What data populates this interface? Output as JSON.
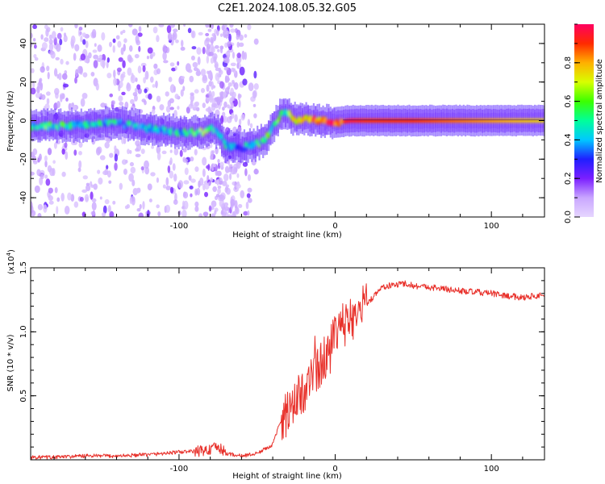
{
  "figure_title": "C2E1.2024.108.05.32.G05",
  "chart_data": [
    {
      "type": "heatmap",
      "title": "",
      "xlabel": "Height of straight line (km)",
      "ylabel": "Frequency (Hz)",
      "xlim": [
        -195,
        134
      ],
      "ylim": [
        -50,
        50
      ],
      "x_ticks": [
        -100,
        0,
        100
      ],
      "x_tick_labels": [
        "-100",
        "0",
        "100"
      ],
      "y_ticks": [
        -40,
        -20,
        0,
        20,
        40
      ],
      "y_tick_labels": [
        "-40",
        "-20",
        "0",
        "20",
        "40"
      ],
      "colorbar": {
        "label": "Normalized spectral amplitude",
        "range": [
          0,
          1
        ],
        "ticks": [
          0.0,
          0.2,
          0.4,
          0.6,
          0.8
        ],
        "tick_labels": [
          "0.0",
          "0.2",
          "0.4",
          "0.6",
          "0.8"
        ],
        "colormap": [
          "#e6d6ff",
          "#c9a6ff",
          "#7b1fff",
          "#1f1fff",
          "#00c8ff",
          "#00ff9a",
          "#3cff00",
          "#d8ff00",
          "#ffb000",
          "#ff2a00",
          "#ff0060"
        ]
      },
      "ridge": {
        "name": "",
        "x": [
          -195,
          -180,
          -160,
          -140,
          -120,
          -100,
          -85,
          -80,
          -75,
          -70,
          -60,
          -50,
          -45,
          -40,
          -35,
          -30,
          -25,
          -20,
          -10,
          0,
          10,
          20,
          50,
          80,
          110,
          134
        ],
        "y": [
          -3,
          -3,
          -2,
          -1,
          -4,
          -6,
          -6,
          -4,
          -6,
          -13,
          -14,
          -12,
          -10,
          -3,
          3,
          4,
          0,
          1,
          0,
          -1,
          0,
          0,
          0,
          0,
          0,
          0
        ],
        "amplitude": [
          0.45,
          0.5,
          0.45,
          0.4,
          0.35,
          0.45,
          0.55,
          0.6,
          0.4,
          0.45,
          0.4,
          0.45,
          0.5,
          0.45,
          0.5,
          0.55,
          0.7,
          0.75,
          0.85,
          0.9,
          0.95,
          0.9,
          0.9,
          0.85,
          0.8,
          0.75
        ]
      }
    },
    {
      "type": "line",
      "title": "",
      "xlabel": "Height of straight line (km)",
      "ylabel": "SNR (10 * v/v)",
      "y_multiplier": "(x10",
      "y_multiplier_exp": "4",
      "y_multiplier_close": ")",
      "xlim": [
        -195,
        134
      ],
      "ylim": [
        0,
        1.5
      ],
      "x_ticks": [
        -100,
        0,
        100
      ],
      "x_tick_labels": [
        "-100",
        "0",
        "100"
      ],
      "y_ticks": [
        0.5,
        1.0,
        1.5
      ],
      "y_tick_labels": [
        "0.5",
        "1.0",
        "1.5"
      ],
      "color": "#e8302a",
      "series": [
        {
          "x": [
            -195,
            -180,
            -160,
            -140,
            -120,
            -100,
            -85,
            -80,
            -75,
            -70,
            -60,
            -50,
            -40,
            -35,
            -30,
            -25,
            -20,
            -15,
            -10,
            -5,
            0,
            5,
            10,
            15,
            20,
            25,
            30,
            40,
            45,
            50,
            60,
            80,
            100,
            110,
            120,
            134
          ],
          "y": [
            0.02,
            0.02,
            0.03,
            0.03,
            0.04,
            0.06,
            0.07,
            0.08,
            0.1,
            0.05,
            0.03,
            0.05,
            0.12,
            0.3,
            0.38,
            0.45,
            0.55,
            0.65,
            0.72,
            0.85,
            0.95,
            1.05,
            1.1,
            1.15,
            1.22,
            1.28,
            1.35,
            1.37,
            1.38,
            1.36,
            1.35,
            1.32,
            1.3,
            1.28,
            1.27,
            1.29
          ]
        }
      ]
    }
  ]
}
